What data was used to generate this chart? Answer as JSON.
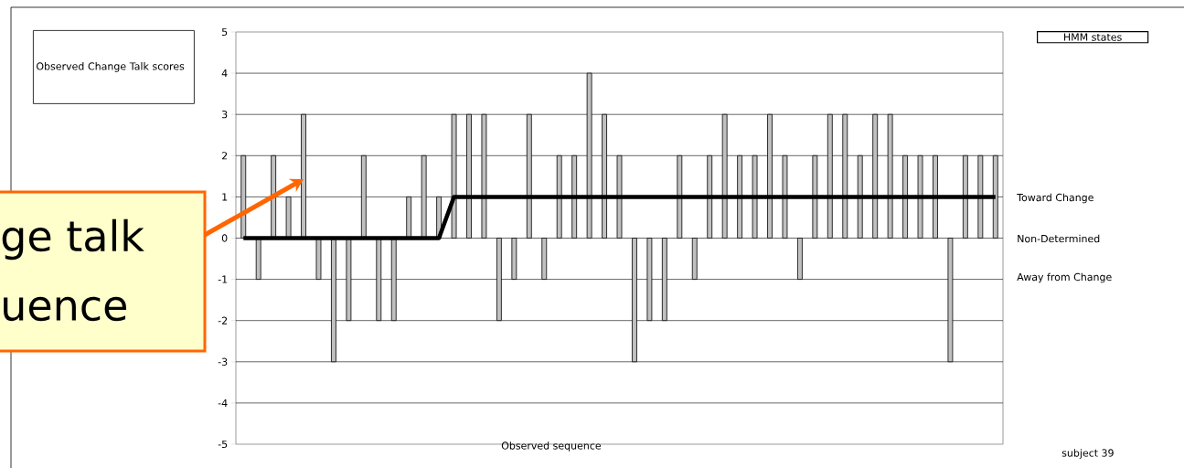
{
  "chart_data": {
    "type": "bar",
    "xlabel": "Observed sequence",
    "categories": [
      null,
      null,
      null,
      null,
      null,
      null,
      null,
      null,
      null,
      null,
      null,
      null,
      null,
      null,
      null,
      null,
      null,
      null,
      null,
      null,
      null,
      null,
      null,
      null,
      null,
      null,
      null,
      null,
      null,
      null,
      null,
      null,
      null,
      null,
      null,
      null,
      null,
      null,
      null,
      null,
      null,
      null,
      null,
      null,
      null,
      null,
      null,
      null,
      null,
      null,
      null
    ],
    "series": [
      {
        "color": "#c0c0c0",
        "values": [
          2,
          -1,
          2,
          1,
          3,
          -1,
          -3,
          -2,
          2,
          -2,
          -2,
          1,
          2,
          1,
          3,
          3,
          3,
          -2,
          -1,
          3,
          -1,
          2,
          2,
          4,
          3,
          2,
          -3,
          -2,
          -2,
          2,
          -1,
          2,
          3,
          2,
          2,
          3,
          2,
          -1,
          2,
          3,
          3,
          2,
          3,
          3,
          2,
          2,
          2,
          -3,
          2,
          2,
          2
        ]
      },
      {
        "type": "line",
        "color": "#000000",
        "line_style": "solid",
        "values": [
          0,
          0,
          0,
          0,
          0,
          0,
          0,
          0,
          0,
          0,
          0,
          0,
          0,
          0,
          1,
          1,
          1,
          1,
          1,
          1,
          1,
          1,
          1,
          1,
          1,
          1,
          1,
          1,
          1,
          1,
          1,
          1,
          1,
          1,
          1,
          1,
          1,
          1,
          1,
          1,
          1,
          1,
          1,
          1,
          1,
          1,
          1,
          1,
          1,
          1,
          1
        ]
      }
    ],
    "ylim": [
      -5,
      5
    ],
    "yticks": [
      -5,
      -4,
      -3,
      -2,
      -1,
      0,
      1,
      2,
      3,
      4,
      5
    ],
    "grid": "y",
    "annotations": [
      "Observed Change Talk scores",
      "HMM states",
      "ge talk",
      "uence",
      "subject 39",
      "Toward Change",
      "Non-Determined",
      "Away from Change"
    ]
  }
}
